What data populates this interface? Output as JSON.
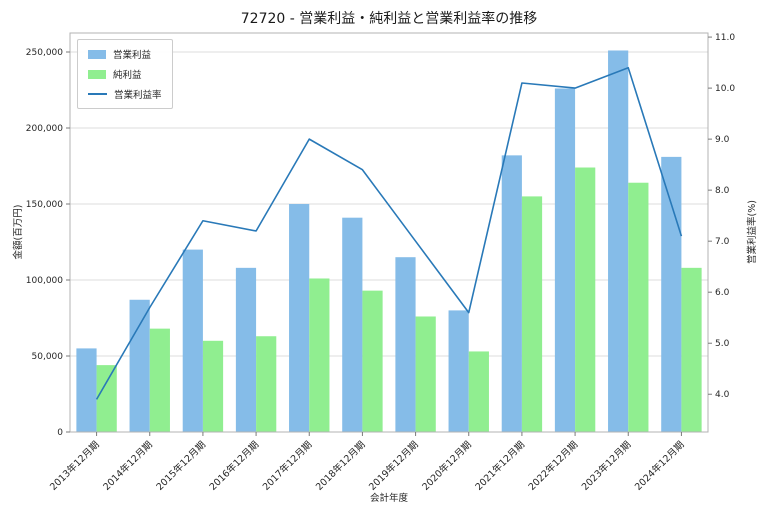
{
  "chart_data": {
    "type": "bar",
    "title": "72720 - 営業利益・純利益と営業利益率の推移",
    "xlabel": "会計年度",
    "ylabel_left": "金額(百万円)",
    "ylabel_right": "営業利益率(%)",
    "legend_position": "upper left",
    "grid": true,
    "categories": [
      "2013年12月期",
      "2014年12月期",
      "2015年12月期",
      "2016年12月期",
      "2017年12月期",
      "2018年12月期",
      "2019年12月期",
      "2020年12月期",
      "2021年12月期",
      "2022年12月期",
      "2023年12月期",
      "2024年12月期"
    ],
    "series": [
      {
        "name": "営業利益",
        "type": "bar",
        "axis": "left",
        "color": "#85bce8",
        "values": [
          55000,
          87000,
          120000,
          108000,
          150000,
          141000,
          115000,
          80000,
          182000,
          226000,
          251000,
          181000
        ]
      },
      {
        "name": "純利益",
        "type": "bar",
        "axis": "left",
        "color": "#90ee90",
        "values": [
          44000,
          68000,
          60000,
          63000,
          101000,
          93000,
          76000,
          53000,
          155000,
          174000,
          164000,
          108000
        ]
      },
      {
        "name": "営業利益率",
        "type": "line",
        "axis": "right",
        "color": "#2979b8",
        "values": [
          3.9,
          5.7,
          7.4,
          7.2,
          9.0,
          8.4,
          7.0,
          5.6,
          10.1,
          10.0,
          10.4,
          7.1
        ]
      }
    ],
    "y_axis_left": {
      "ticks": [
        0,
        50000,
        100000,
        150000,
        200000,
        250000
      ],
      "tick_labels": [
        "0",
        "50,000",
        "100,000",
        "150,000",
        "200,000",
        "250,000"
      ],
      "range": [
        0,
        262500
      ]
    },
    "y_axis_right": {
      "ticks": [
        4,
        5,
        6,
        7,
        8,
        9,
        10,
        11
      ],
      "tick_labels": [
        "4.0",
        "5.0",
        "6.0",
        "7.0",
        "8.0",
        "9.0",
        "10.0",
        "11.0"
      ],
      "range": [
        3.26,
        11.08
      ]
    }
  },
  "colors": {
    "background": "#ffffff",
    "grid": "#dcdcdc",
    "spine": "#b3b3b3",
    "tick": "#7a7a7a",
    "text": "#262626",
    "title": "#1a1a1a",
    "legend_border": "#cccccc"
  }
}
